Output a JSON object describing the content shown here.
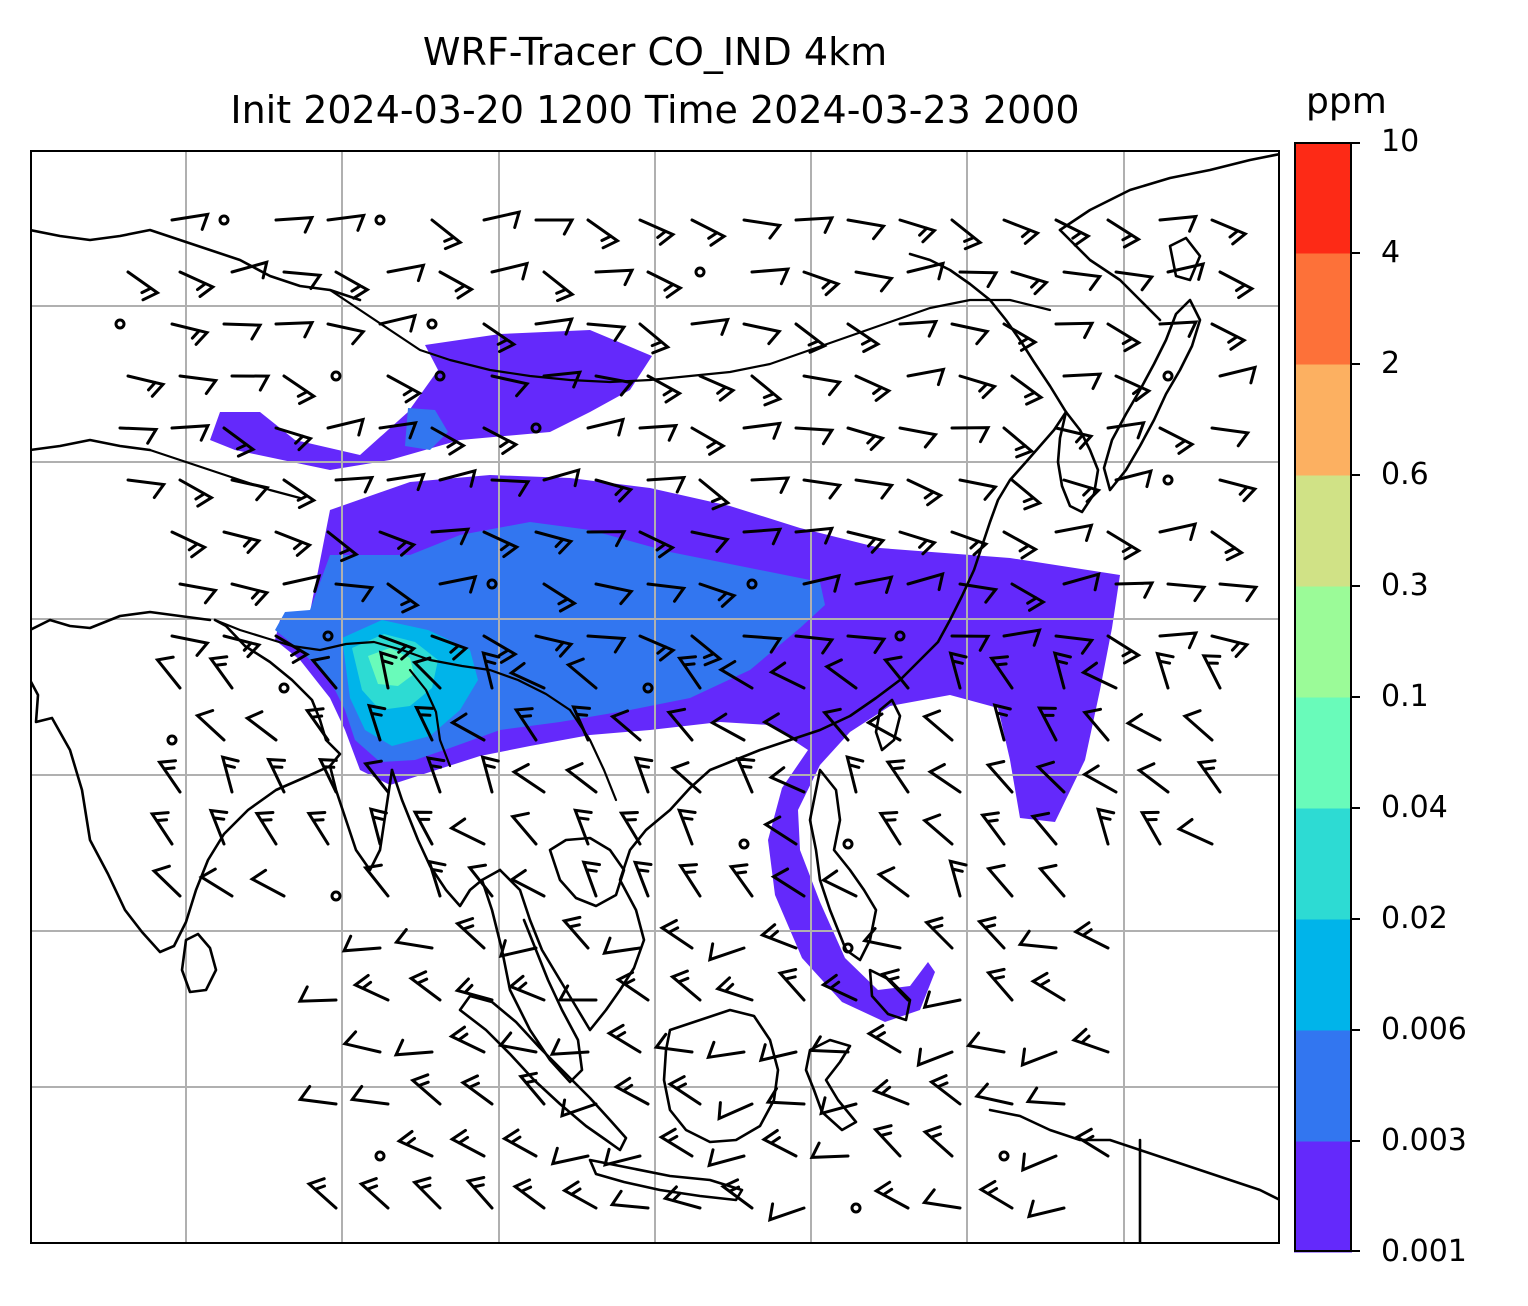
{
  "title": {
    "line1": "WRF-Tracer CO_IND 4km",
    "line2": "Init 2024-03-20 1200 Time 2024-03-23 2000"
  },
  "colorbar": {
    "unit": "ppm",
    "levels": [
      "0.001",
      "0.003",
      "0.006",
      "0.02",
      "0.04",
      "0.1",
      "0.3",
      "0.6",
      "2",
      "4",
      "10"
    ],
    "colors": [
      "#6429fb",
      "#3276f0",
      "#00b4ea",
      "#2ddbd3",
      "#69fbba",
      "#9bfb98",
      "#d0e286",
      "#fcb061",
      "#fd7139",
      "#fd2a16"
    ]
  },
  "map": {
    "gridlines": true,
    "gridline_color": "#b0b0b0",
    "coastline_color": "#000000",
    "barb_color": "#000000"
  }
}
